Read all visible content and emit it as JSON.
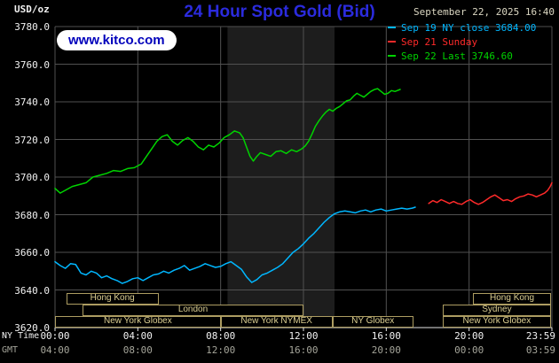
{
  "header": {
    "units_label": "USD/oz",
    "title": "24 Hour Spot Gold (Bid)",
    "title_color": "#2b2bdd",
    "datetime": "September 22, 2025 16:40",
    "watermark": "www.kitco.com",
    "legend": [
      {
        "label": "Sep 19 NY close 3684.00",
        "color": "#00b7ff"
      },
      {
        "label": "Sep 21 Sunday",
        "color": "#ff2a2a"
      },
      {
        "label": "Sep 22 Last 3746.60",
        "color": "#00d300"
      }
    ]
  },
  "axes": {
    "ny_label": "NY Time",
    "gmt_label": "GMT"
  },
  "colors": {
    "background": "#000000",
    "grid": "#515151",
    "shading": "#1d1d1d",
    "axis_line": "#e6e6e6",
    "session_border": "#ad9d62",
    "session_text": "#dccf92"
  },
  "sessions": [
    {
      "label": "Hong Kong",
      "row": 1,
      "start_h": 0.55,
      "end_h": 5.0
    },
    {
      "label": "Hong Kong",
      "row": 1,
      "start_h": 20.2,
      "end_h": 23.95
    },
    {
      "label": "London",
      "row": 2,
      "start_h": 1.33,
      "end_h": 12.0
    },
    {
      "label": "Sydney",
      "row": 2,
      "start_h": 18.73,
      "end_h": 23.95
    },
    {
      "label": "New York Globex",
      "row": 3,
      "start_h": 0.0,
      "end_h": 8.0
    },
    {
      "label": "New York NYMEX",
      "row": 3,
      "start_h": 8.0,
      "end_h": 13.4
    },
    {
      "label": "NY Globex",
      "row": 3,
      "start_h": 13.4,
      "end_h": 17.3
    },
    {
      "label": "New York Globex",
      "row": 3,
      "start_h": 18.73,
      "end_h": 23.95
    }
  ],
  "chart_data": {
    "type": "line",
    "title": "24 Hour Spot Gold (Bid)",
    "ylabel": "USD/oz",
    "x_axis": {
      "range_hours": [
        0,
        24
      ],
      "tick_hours": [
        0,
        4,
        8,
        12,
        16,
        20,
        24
      ],
      "ny_tick_labels": [
        "00:00",
        "04:00",
        "08:00",
        "12:00",
        "16:00",
        "20:00",
        "23:59"
      ],
      "gmt_tick_labels": [
        "04:00",
        "08:00",
        "12:00",
        "16:00",
        "20:00",
        "00:00",
        "03:59"
      ]
    },
    "y_axis": {
      "range": [
        3620,
        3780
      ],
      "ticks": [
        3620,
        3640,
        3660,
        3680,
        3700,
        3720,
        3740,
        3760,
        3780
      ],
      "tick_labels": [
        "3620.0",
        "3640.0",
        "3660.0",
        "3680.0",
        "3700.0",
        "3720.0",
        "3740.0",
        "3760.0",
        "3780.0"
      ]
    },
    "grid": true,
    "shaded_region_hours": [
      8.33,
      13.5
    ],
    "series": [
      {
        "id": "sep19",
        "name": "Sep 19 NY close",
        "color": "#00b7ff",
        "final_value": 3684.0,
        "points": [
          [
            0,
            3655
          ],
          [
            0.25,
            3653
          ],
          [
            0.5,
            3651.5
          ],
          [
            0.75,
            3654
          ],
          [
            1,
            3653.5
          ],
          [
            1.25,
            3649
          ],
          [
            1.5,
            3648
          ],
          [
            1.75,
            3650
          ],
          [
            2,
            3649
          ],
          [
            2.25,
            3646.5
          ],
          [
            2.5,
            3647.5
          ],
          [
            2.75,
            3646
          ],
          [
            3,
            3645
          ],
          [
            3.25,
            3643.5
          ],
          [
            3.5,
            3644.5
          ],
          [
            3.75,
            3646
          ],
          [
            4,
            3646.5
          ],
          [
            4.25,
            3645
          ],
          [
            4.5,
            3646.5
          ],
          [
            4.75,
            3648
          ],
          [
            5,
            3648.5
          ],
          [
            5.25,
            3650
          ],
          [
            5.5,
            3649
          ],
          [
            5.75,
            3650.5
          ],
          [
            6,
            3651.5
          ],
          [
            6.25,
            3653
          ],
          [
            6.5,
            3650.5
          ],
          [
            6.75,
            3651.5
          ],
          [
            7,
            3652.5
          ],
          [
            7.25,
            3654
          ],
          [
            7.5,
            3653
          ],
          [
            7.75,
            3652
          ],
          [
            8,
            3652.5
          ],
          [
            8.25,
            3654
          ],
          [
            8.5,
            3655
          ],
          [
            8.75,
            3653
          ],
          [
            9,
            3651
          ],
          [
            9.25,
            3647
          ],
          [
            9.5,
            3644
          ],
          [
            9.75,
            3645.5
          ],
          [
            10,
            3648
          ],
          [
            10.25,
            3649
          ],
          [
            10.5,
            3650.5
          ],
          [
            10.75,
            3652
          ],
          [
            11,
            3654
          ],
          [
            11.25,
            3657
          ],
          [
            11.5,
            3660
          ],
          [
            11.75,
            3662
          ],
          [
            12,
            3664.5
          ],
          [
            12.25,
            3667.5
          ],
          [
            12.5,
            3670
          ],
          [
            12.75,
            3673
          ],
          [
            13,
            3676
          ],
          [
            13.25,
            3678.5
          ],
          [
            13.5,
            3680.5
          ],
          [
            13.75,
            3681.5
          ],
          [
            14,
            3682
          ],
          [
            14.25,
            3681.5
          ],
          [
            14.5,
            3681
          ],
          [
            14.75,
            3682
          ],
          [
            15,
            3682.5
          ],
          [
            15.25,
            3681.5
          ],
          [
            15.5,
            3682.5
          ],
          [
            15.75,
            3683
          ],
          [
            16,
            3682
          ],
          [
            16.25,
            3682.5
          ],
          [
            16.5,
            3683
          ],
          [
            16.75,
            3683.5
          ],
          [
            17,
            3683
          ],
          [
            17.25,
            3683.5
          ],
          [
            17.4,
            3684
          ]
        ]
      },
      {
        "id": "sep21",
        "name": "Sep 21 Sunday",
        "color": "#ff2a2a",
        "points": [
          [
            18.05,
            3686
          ],
          [
            18.25,
            3687.5
          ],
          [
            18.45,
            3686.5
          ],
          [
            18.65,
            3688
          ],
          [
            18.85,
            3687
          ],
          [
            19.05,
            3686
          ],
          [
            19.25,
            3687
          ],
          [
            19.45,
            3686
          ],
          [
            19.65,
            3685.5
          ],
          [
            19.85,
            3687
          ],
          [
            20.05,
            3688
          ],
          [
            20.25,
            3686.5
          ],
          [
            20.45,
            3685.5
          ],
          [
            20.65,
            3686.5
          ],
          [
            20.85,
            3688
          ],
          [
            21.05,
            3689.5
          ],
          [
            21.25,
            3690.5
          ],
          [
            21.45,
            3689
          ],
          [
            21.65,
            3687.5
          ],
          [
            21.85,
            3688
          ],
          [
            22.05,
            3687
          ],
          [
            22.25,
            3688.5
          ],
          [
            22.45,
            3689.5
          ],
          [
            22.65,
            3690
          ],
          [
            22.85,
            3691
          ],
          [
            23.05,
            3690.5
          ],
          [
            23.25,
            3689.5
          ],
          [
            23.45,
            3690.5
          ],
          [
            23.65,
            3691.5
          ],
          [
            23.8,
            3693
          ],
          [
            23.92,
            3695
          ],
          [
            24,
            3697
          ]
        ]
      },
      {
        "id": "sep22",
        "name": "Sep 22 Last",
        "color": "#00d300",
        "final_value": 3746.6,
        "points": [
          [
            0,
            3694
          ],
          [
            0.25,
            3691.5
          ],
          [
            0.5,
            3693
          ],
          [
            0.83,
            3695
          ],
          [
            1.17,
            3696
          ],
          [
            1.5,
            3697
          ],
          [
            1.83,
            3700
          ],
          [
            2.17,
            3701
          ],
          [
            2.5,
            3702
          ],
          [
            2.83,
            3703.5
          ],
          [
            3.17,
            3703
          ],
          [
            3.5,
            3704.5
          ],
          [
            3.83,
            3705
          ],
          [
            4.17,
            3707
          ],
          [
            4.42,
            3711
          ],
          [
            4.67,
            3715
          ],
          [
            4.92,
            3719
          ],
          [
            5.17,
            3721.5
          ],
          [
            5.42,
            3722.5
          ],
          [
            5.67,
            3719
          ],
          [
            5.92,
            3717
          ],
          [
            6.17,
            3719.5
          ],
          [
            6.42,
            3721
          ],
          [
            6.67,
            3719
          ],
          [
            6.92,
            3716
          ],
          [
            7.17,
            3714.5
          ],
          [
            7.42,
            3717
          ],
          [
            7.67,
            3716
          ],
          [
            7.92,
            3718
          ],
          [
            8.17,
            3721
          ],
          [
            8.42,
            3722.5
          ],
          [
            8.67,
            3724.5
          ],
          [
            8.92,
            3723.5
          ],
          [
            9.08,
            3721
          ],
          [
            9.25,
            3716
          ],
          [
            9.42,
            3711
          ],
          [
            9.58,
            3708.5
          ],
          [
            9.75,
            3711
          ],
          [
            9.92,
            3713
          ],
          [
            10.17,
            3712
          ],
          [
            10.42,
            3711
          ],
          [
            10.67,
            3713.5
          ],
          [
            10.92,
            3714
          ],
          [
            11.17,
            3712.5
          ],
          [
            11.42,
            3714.5
          ],
          [
            11.67,
            3713.5
          ],
          [
            11.92,
            3715
          ],
          [
            12.08,
            3716.5
          ],
          [
            12.25,
            3719
          ],
          [
            12.42,
            3723
          ],
          [
            12.58,
            3727
          ],
          [
            12.75,
            3730
          ],
          [
            12.92,
            3732.5
          ],
          [
            13.08,
            3734.5
          ],
          [
            13.25,
            3736
          ],
          [
            13.42,
            3735
          ],
          [
            13.58,
            3736.5
          ],
          [
            13.75,
            3737.5
          ],
          [
            13.92,
            3739
          ],
          [
            14.08,
            3740.5
          ],
          [
            14.25,
            3741
          ],
          [
            14.42,
            3743
          ],
          [
            14.58,
            3744.5
          ],
          [
            14.75,
            3743.5
          ],
          [
            14.92,
            3742.5
          ],
          [
            15.08,
            3744
          ],
          [
            15.25,
            3745.5
          ],
          [
            15.42,
            3746.5
          ],
          [
            15.58,
            3747
          ],
          [
            15.75,
            3745.5
          ],
          [
            15.92,
            3744
          ],
          [
            16.08,
            3744.5
          ],
          [
            16.25,
            3746
          ],
          [
            16.42,
            3745.5
          ],
          [
            16.67,
            3746.6
          ]
        ]
      }
    ]
  }
}
